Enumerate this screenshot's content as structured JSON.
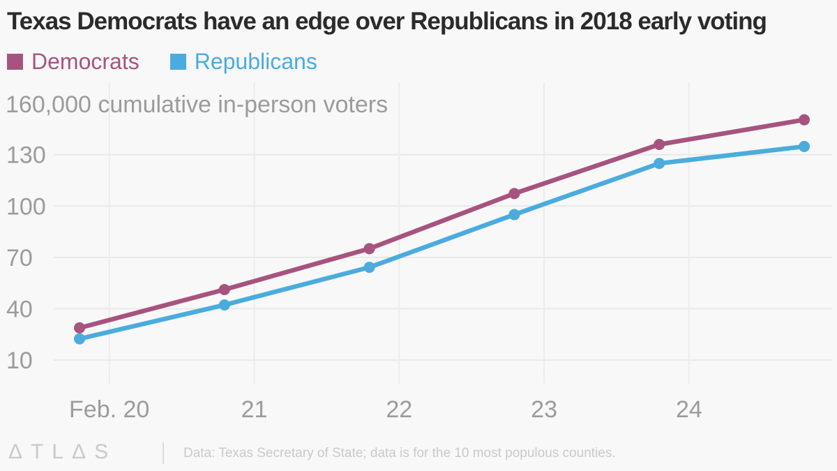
{
  "title": "Texas Democrats have an edge over Republicans in 2018 early voting",
  "legend": {
    "position": "top-left",
    "items": [
      {
        "label": "Democrats",
        "color": "#a7537f"
      },
      {
        "label": "Republicans",
        "color": "#4aacde"
      }
    ]
  },
  "footer": {
    "logo_text": "ΔTLΔS",
    "source_text": "Data: Texas Secretary of State; data is for the 10 most populous counties."
  },
  "chart_data": {
    "type": "line",
    "title": "Texas Democrats have an edge over Republicans in 2018 early voting",
    "unit_label": "160,000 cumulative in-person voters",
    "units": "thousands of cumulative in-person voters",
    "x_tick_labels": [
      "Feb. 20",
      "21",
      "22",
      "23",
      "24"
    ],
    "x_note": "Six daily points (Feb. 20-25, 2018); each point sits slightly left of its labeled gridline",
    "y_ticks": [
      10,
      40,
      70,
      100,
      130
    ],
    "y_tick_labels": [
      "10",
      "40",
      "70",
      "100",
      "130"
    ],
    "ylim": [
      10,
      160
    ],
    "grid": true,
    "legend_position": "top-left",
    "series": [
      {
        "name": "Democrats",
        "color": "#a7537f",
        "values_thousands": [
          28.8,
          51.2,
          75.1,
          107.3,
          136.0,
          150.4
        ]
      },
      {
        "name": "Republicans",
        "color": "#4aacde",
        "values_thousands": [
          22.4,
          42.2,
          64.2,
          95.0,
          124.9,
          134.8
        ]
      }
    ]
  }
}
